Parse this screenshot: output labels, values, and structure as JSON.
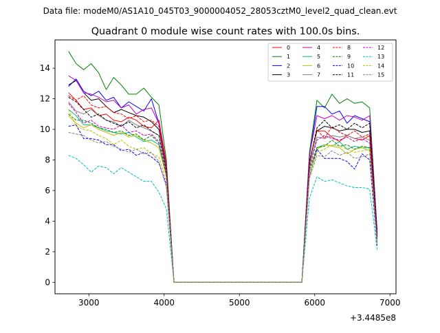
{
  "suptitle": "Data file: modeM0/AS1A10_045T03_9000004052_28053cztM0_level2_quad_clean.evt",
  "chart_data": {
    "type": "line",
    "title": "Quadrant 0 module wise count rates with 100.0s bins.",
    "xlabel": "",
    "ylabel": "",
    "x_offset_label": "+3.4485e8",
    "xlim": [
      2550,
      7080
    ],
    "ylim": [
      -0.75,
      15.85
    ],
    "xticks": [
      3000,
      4000,
      5000,
      6000,
      7000
    ],
    "xtick_labels": [
      "3000",
      "4000",
      "5000",
      "6000",
      "7000"
    ],
    "yticks": [
      0,
      2,
      4,
      6,
      8,
      10,
      12,
      14
    ],
    "ytick_labels": [
      "0",
      "2",
      "4",
      "6",
      "8",
      "10",
      "12",
      "14"
    ],
    "legend_position": "upper right",
    "legend_columns": 4,
    "x": [
      2730,
      2830,
      2930,
      3030,
      3130,
      3230,
      3330,
      3430,
      3530,
      3630,
      3730,
      3830,
      3930,
      4030,
      4130,
      4230,
      4330,
      4430,
      4530,
      4630,
      4730,
      4830,
      4930,
      5030,
      5130,
      5230,
      5330,
      5430,
      5530,
      5630,
      5730,
      5830,
      5930,
      6030,
      6130,
      6230,
      6330,
      6430,
      6530,
      6630,
      6730,
      6830
    ],
    "series": [
      {
        "name": "0",
        "color": "#ff0000",
        "dash": "solid",
        "values": [
          12.4,
          11.9,
          11.3,
          11.4,
          10.9,
          11.0,
          10.6,
          10.5,
          10.8,
          10.6,
          10.2,
          10.1,
          10.6,
          7.8,
          0,
          0,
          0,
          0,
          0,
          0,
          0,
          0,
          0,
          0,
          0,
          0,
          0,
          0,
          0,
          0,
          0,
          0,
          7.9,
          9.9,
          9.9,
          9.5,
          9.2,
          9.6,
          9.4,
          9.3,
          9.6,
          2.6
        ]
      },
      {
        "name": "1",
        "color": "#008000",
        "dash": "solid",
        "values": [
          15.1,
          14.3,
          13.9,
          14.3,
          13.7,
          12.6,
          13.4,
          12.9,
          12.3,
          12.3,
          12.7,
          12.1,
          11.6,
          8.0,
          0,
          0,
          0,
          0,
          0,
          0,
          0,
          0,
          0,
          0,
          0,
          0,
          0,
          0,
          0,
          0,
          0,
          0,
          8.5,
          11.9,
          11.4,
          12.3,
          11.7,
          12.0,
          11.7,
          11.8,
          11.4,
          3.4
        ]
      },
      {
        "name": "2",
        "color": "#0000ff",
        "dash": "solid",
        "values": [
          12.8,
          13.3,
          12.5,
          12.2,
          12.5,
          11.9,
          12.1,
          11.4,
          11.8,
          11.5,
          11.2,
          12.0,
          10.4,
          7.6,
          0,
          0,
          0,
          0,
          0,
          0,
          0,
          0,
          0,
          0,
          0,
          0,
          0,
          0,
          0,
          0,
          0,
          0,
          8.2,
          11.5,
          11.5,
          11.0,
          11.2,
          10.4,
          10.9,
          10.7,
          10.5,
          3.3
        ]
      },
      {
        "name": "3",
        "color": "#000000",
        "dash": "solid",
        "values": [
          12.9,
          13.2,
          12.4,
          11.9,
          12.0,
          11.5,
          11.1,
          11.3,
          11.1,
          10.9,
          10.8,
          10.5,
          10.0,
          7.5,
          0,
          0,
          0,
          0,
          0,
          0,
          0,
          0,
          0,
          0,
          0,
          0,
          0,
          0,
          0,
          0,
          0,
          0,
          7.9,
          9.9,
          10.2,
          10.1,
          9.9,
          10.0,
          10.0,
          9.8,
          9.9,
          3.0
        ]
      },
      {
        "name": "4",
        "color": "#bf00bf",
        "dash": "solid",
        "values": [
          13.5,
          13.2,
          12.4,
          12.3,
          12.1,
          11.8,
          11.9,
          11.4,
          11.6,
          11.0,
          11.3,
          11.4,
          10.4,
          7.6,
          0,
          0,
          0,
          0,
          0,
          0,
          0,
          0,
          0,
          0,
          0,
          0,
          0,
          0,
          0,
          0,
          0,
          0,
          8.3,
          10.9,
          10.7,
          10.9,
          10.6,
          10.9,
          10.8,
          10.6,
          10.9,
          3.2
        ]
      },
      {
        "name": "5",
        "color": "#00bf7f",
        "dash": "solid",
        "values": [
          11.3,
          10.9,
          10.3,
          10.3,
          10.1,
          9.9,
          9.8,
          9.7,
          9.8,
          9.5,
          9.2,
          9.3,
          9.0,
          7.1,
          0,
          0,
          0,
          0,
          0,
          0,
          0,
          0,
          0,
          0,
          0,
          0,
          0,
          0,
          0,
          0,
          0,
          0,
          7.2,
          8.8,
          9.0,
          8.9,
          9.2,
          8.7,
          8.9,
          8.8,
          8.8,
          2.7
        ]
      },
      {
        "name": "6",
        "color": "#bfbf00",
        "dash": "solid",
        "values": [
          10.9,
          10.4,
          10.1,
          10.3,
          10.0,
          9.8,
          9.6,
          9.8,
          9.5,
          9.6,
          9.3,
          9.1,
          8.8,
          6.9,
          0,
          0,
          0,
          0,
          0,
          0,
          0,
          0,
          0,
          0,
          0,
          0,
          0,
          0,
          0,
          0,
          0,
          0,
          7.3,
          8.7,
          9.0,
          8.9,
          8.8,
          8.4,
          8.7,
          8.8,
          8.6,
          2.6
        ]
      },
      {
        "name": "7",
        "color": "#808080",
        "dash": "solid",
        "values": [
          11.8,
          11.2,
          11.0,
          11.3,
          10.9,
          10.6,
          10.5,
          10.2,
          10.6,
          10.3,
          10.1,
          9.9,
          9.6,
          7.3,
          0,
          0,
          0,
          0,
          0,
          0,
          0,
          0,
          0,
          0,
          0,
          0,
          0,
          0,
          0,
          0,
          0,
          0,
          7.6,
          9.5,
          9.4,
          9.6,
          9.5,
          9.6,
          9.4,
          9.5,
          9.3,
          2.8
        ]
      },
      {
        "name": "8",
        "color": "#ff0000",
        "dash": "dashed",
        "values": [
          12.2,
          11.9,
          12.2,
          11.6,
          11.4,
          11.5,
          11.1,
          11.0,
          10.7,
          10.9,
          10.5,
          10.6,
          10.2,
          7.5,
          0,
          0,
          0,
          0,
          0,
          0,
          0,
          0,
          0,
          0,
          0,
          0,
          0,
          0,
          0,
          0,
          0,
          0,
          7.8,
          10.0,
          9.4,
          10.2,
          9.8,
          9.6,
          9.9,
          9.5,
          9.7,
          2.9
        ]
      },
      {
        "name": "9",
        "color": "#008000",
        "dash": "dashed",
        "values": [
          11.0,
          10.6,
          10.6,
          10.4,
          10.1,
          10.0,
          9.8,
          9.9,
          9.6,
          9.7,
          9.3,
          9.6,
          9.1,
          7.0,
          0,
          0,
          0,
          0,
          0,
          0,
          0,
          0,
          0,
          0,
          0,
          0,
          0,
          0,
          0,
          0,
          0,
          0,
          7.4,
          8.8,
          8.9,
          9.3,
          8.9,
          9.0,
          8.7,
          8.9,
          8.8,
          2.7
        ]
      },
      {
        "name": "10",
        "color": "#0000ff",
        "dash": "dashed",
        "values": [
          10.2,
          10.3,
          9.4,
          9.4,
          9.3,
          9.0,
          9.0,
          8.6,
          8.7,
          8.3,
          8.5,
          8.2,
          7.8,
          6.4,
          0,
          0,
          0,
          0,
          0,
          0,
          0,
          0,
          0,
          0,
          0,
          0,
          0,
          0,
          0,
          0,
          0,
          0,
          6.9,
          8.7,
          8.1,
          8.1,
          8.1,
          7.9,
          7.4,
          8.4,
          8.0,
          2.4
        ]
      },
      {
        "name": "11",
        "color": "#000000",
        "dash": "dashed",
        "values": [
          12.1,
          11.8,
          11.3,
          10.8,
          11.0,
          10.6,
          10.4,
          10.2,
          10.5,
          10.1,
          10.3,
          9.9,
          9.6,
          7.3,
          0,
          0,
          0,
          0,
          0,
          0,
          0,
          0,
          0,
          0,
          0,
          0,
          0,
          0,
          0,
          0,
          0,
          0,
          7.8,
          10.1,
          10.6,
          10.1,
          10.3,
          10.0,
          10.4,
          10.1,
          10.4,
          3.0
        ]
      },
      {
        "name": "12",
        "color": "#bf00bf",
        "dash": "dashed",
        "values": [
          11.7,
          11.1,
          10.4,
          10.6,
          10.2,
          10.1,
          10.0,
          10.3,
          9.8,
          9.9,
          9.6,
          9.7,
          9.2,
          7.1,
          0,
          0,
          0,
          0,
          0,
          0,
          0,
          0,
          0,
          0,
          0,
          0,
          0,
          0,
          0,
          0,
          0,
          0,
          7.5,
          9.3,
          9.6,
          9.4,
          9.3,
          9.5,
          9.2,
          9.4,
          9.1,
          2.8
        ]
      },
      {
        "name": "13",
        "color": "#00bfbf",
        "dash": "dashed",
        "values": [
          8.3,
          8.1,
          7.7,
          7.2,
          7.6,
          7.5,
          7.1,
          7.5,
          7.2,
          6.9,
          6.6,
          6.6,
          5.9,
          4.8,
          0,
          0,
          0,
          0,
          0,
          0,
          0,
          0,
          0,
          0,
          0,
          0,
          0,
          0,
          0,
          0,
          0,
          0,
          5.5,
          6.9,
          6.6,
          6.7,
          6.5,
          6.3,
          6.2,
          6.2,
          6.1,
          2.1
        ]
      },
      {
        "name": "14",
        "color": "#bfbf00",
        "dash": "dashed",
        "values": [
          11.3,
          10.2,
          10.0,
          9.9,
          9.6,
          9.4,
          9.0,
          9.3,
          8.9,
          8.7,
          8.8,
          8.4,
          8.2,
          6.6,
          0,
          0,
          0,
          0,
          0,
          0,
          0,
          0,
          0,
          0,
          0,
          0,
          0,
          0,
          0,
          0,
          0,
          0,
          7.0,
          8.5,
          8.7,
          9.0,
          8.9,
          8.7,
          8.5,
          8.6,
          8.7,
          2.5
        ]
      },
      {
        "name": "15",
        "color": "#808080",
        "dash": "dashed",
        "values": [
          9.8,
          9.7,
          9.6,
          9.3,
          9.1,
          9.2,
          8.9,
          8.7,
          8.5,
          8.7,
          8.4,
          8.5,
          7.9,
          6.2,
          0,
          0,
          0,
          0,
          0,
          0,
          0,
          0,
          0,
          0,
          0,
          0,
          0,
          0,
          0,
          0,
          0,
          0,
          6.8,
          8.3,
          8.2,
          8.6,
          8.3,
          8.5,
          8.1,
          8.2,
          8.4,
          2.5
        ]
      }
    ]
  }
}
